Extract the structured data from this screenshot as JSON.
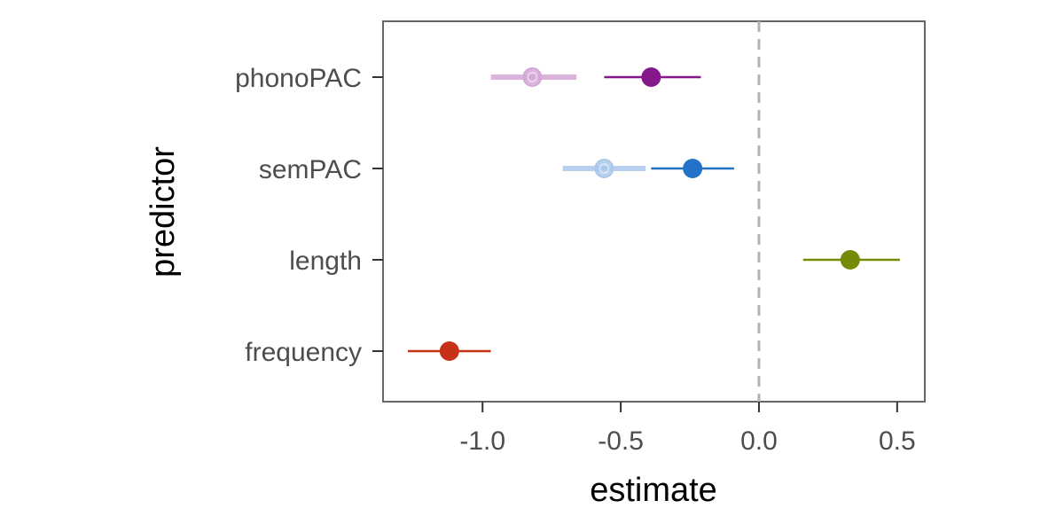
{
  "chart_data": {
    "type": "scatter",
    "subtype": "coefficient-plot",
    "xlabel": "estimate",
    "ylabel": "predictor",
    "xlim": [
      -1.36,
      0.6
    ],
    "x_ticks": [
      -1.0,
      -0.5,
      0.0,
      0.5
    ],
    "x_tick_labels": [
      "-1.0",
      "-0.5",
      "0.0",
      "0.5"
    ],
    "categories": [
      "phonoPAC",
      "semPAC",
      "length",
      "frequency"
    ],
    "reference_line": {
      "x": 0.0,
      "style": "dashed",
      "color": "#b3b3b3"
    },
    "grid": false,
    "legend": "none",
    "points": [
      {
        "predictor": "phonoPAC",
        "estimate": -0.82,
        "low": -0.97,
        "high": -0.66,
        "color": "#d5a6d6",
        "faded": true
      },
      {
        "predictor": "phonoPAC",
        "estimate": -0.39,
        "low": -0.56,
        "high": -0.21,
        "color": "#85198c",
        "faded": false
      },
      {
        "predictor": "semPAC",
        "estimate": -0.56,
        "low": -0.71,
        "high": -0.41,
        "color": "#a9c8ea",
        "faded": true
      },
      {
        "predictor": "semPAC",
        "estimate": -0.24,
        "low": -0.39,
        "high": -0.09,
        "color": "#2272c8",
        "faded": false
      },
      {
        "predictor": "length",
        "estimate": 0.33,
        "low": 0.16,
        "high": 0.51,
        "color": "#768a0a",
        "faded": false
      },
      {
        "predictor": "frequency",
        "estimate": -1.12,
        "low": -1.27,
        "high": -0.97,
        "color": "#c53217",
        "faded": false
      }
    ]
  }
}
